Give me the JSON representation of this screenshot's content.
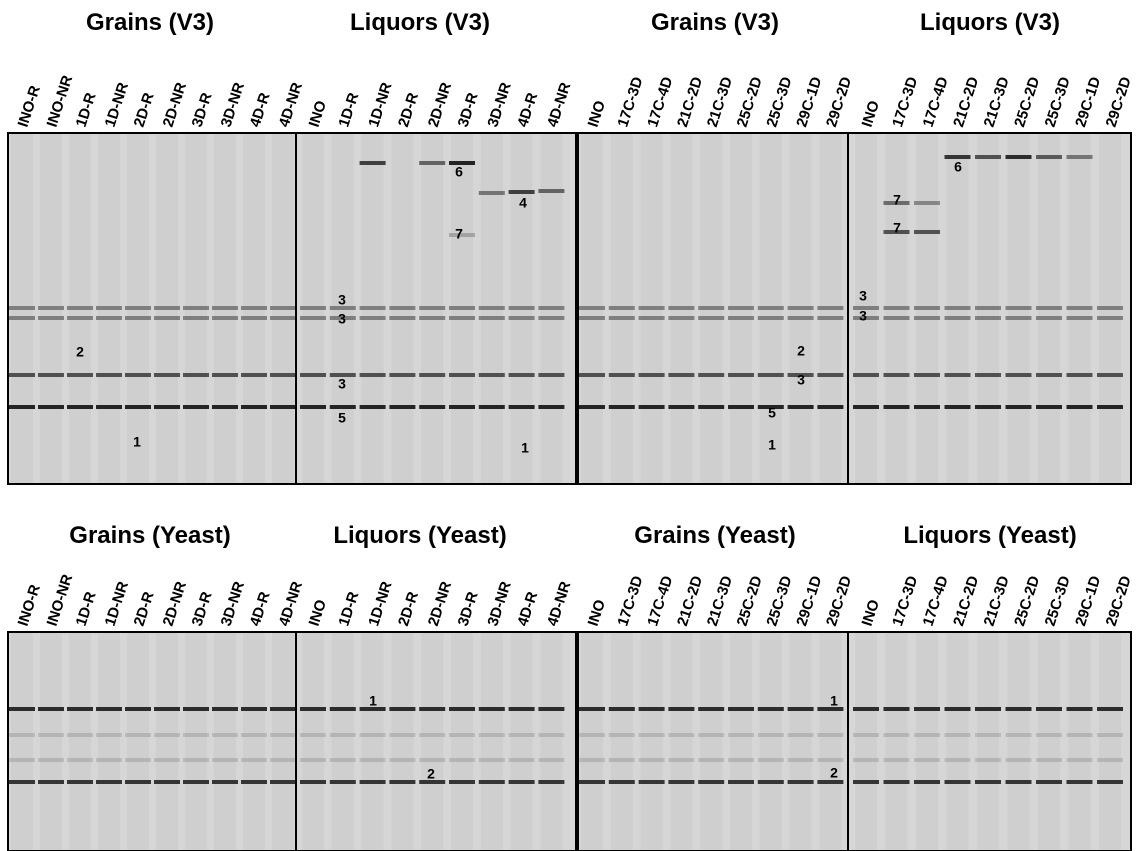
{
  "panels": [
    {
      "gels": [
        {
          "title": "Grains (V3)",
          "lanes": [
            "INO-R",
            "INO-NR",
            "1D-R",
            "1D-NR",
            "2D-R",
            "2D-NR",
            "3D-R",
            "3D-NR",
            "4D-R",
            "4D-NR"
          ],
          "bands": [
            "2",
            "1"
          ]
        },
        {
          "title": "Liquors (V3)",
          "lanes": [
            "INO",
            "1D-R",
            "1D-NR",
            "2D-R",
            "2D-NR",
            "3D-R",
            "3D-NR",
            "4D-R",
            "4D-NR"
          ],
          "bands": [
            "6",
            "4",
            "7",
            "3",
            "3",
            "3",
            "5",
            "1"
          ]
        }
      ]
    },
    {
      "gels": [
        {
          "title": "Grains (V3)",
          "lanes": [
            "INO",
            "17C-3D",
            "17C-4D",
            "21C-2D",
            "21C-3D",
            "25C-2D",
            "25C-3D",
            "29C-1D",
            "29C-2D"
          ],
          "bands": [
            "2",
            "3",
            "5",
            "1"
          ]
        },
        {
          "title": "Liquors (V3)",
          "lanes": [
            "INO",
            "17C-3D",
            "17C-4D",
            "21C-2D",
            "21C-3D",
            "25C-2D",
            "25C-3D",
            "29C-1D",
            "29C-2D"
          ],
          "bands": [
            "6",
            "7",
            "7",
            "3",
            "3"
          ]
        }
      ]
    },
    {
      "gels": [
        {
          "title": "Grains (Yeast)",
          "lanes": [
            "INO-R",
            "INO-NR",
            "1D-R",
            "1D-NR",
            "2D-R",
            "2D-NR",
            "3D-R",
            "3D-NR",
            "4D-R",
            "4D-NR"
          ],
          "bands": []
        },
        {
          "title": "Liquors (Yeast)",
          "lanes": [
            "INO",
            "1D-R",
            "1D-NR",
            "2D-R",
            "2D-NR",
            "3D-R",
            "3D-NR",
            "4D-R",
            "4D-NR"
          ],
          "bands": [
            "1",
            "2"
          ]
        }
      ]
    },
    {
      "gels": [
        {
          "title": "Grains (Yeast)",
          "lanes": [
            "INO",
            "17C-3D",
            "17C-4D",
            "21C-2D",
            "21C-3D",
            "25C-2D",
            "25C-3D",
            "29C-1D",
            "29C-2D"
          ],
          "bands": [
            "1",
            "2"
          ]
        },
        {
          "title": "Liquors (Yeast)",
          "lanes": [
            "INO",
            "17C-3D",
            "17C-4D",
            "21C-2D",
            "21C-3D",
            "25C-2D",
            "25C-3D",
            "29C-1D",
            "29C-2D"
          ],
          "bands": []
        }
      ]
    }
  ]
}
